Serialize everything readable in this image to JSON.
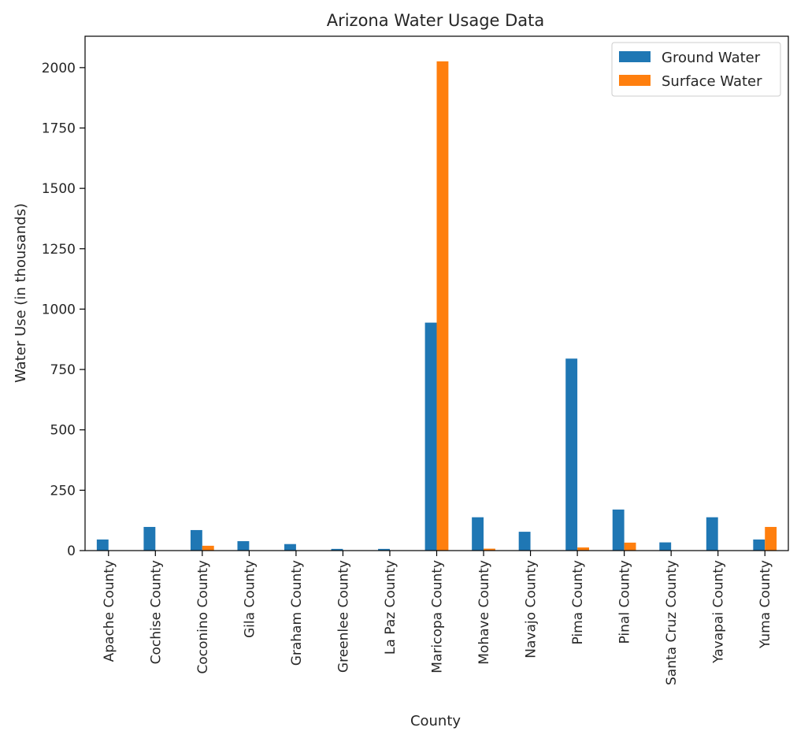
{
  "chart_data": {
    "type": "bar",
    "title": "Arizona Water Usage Data",
    "xlabel": "County",
    "ylabel": "Water Use (in thousands)",
    "ylim": [
      0,
      2130
    ],
    "yticks": [
      0,
      250,
      500,
      750,
      1000,
      1250,
      1500,
      1750,
      2000
    ],
    "grid": false,
    "legend_position": "top-right",
    "categories": [
      "Apache County",
      "Cochise County",
      "Coconino County",
      "Gila County",
      "Graham County",
      "Greenlee County",
      "La Paz County",
      "Maricopa County",
      "Mohave County",
      "Navajo County",
      "Pima County",
      "Pinal County",
      "Santa Cruz County",
      "Yavapai County",
      "Yuma County"
    ],
    "series": [
      {
        "name": "Ground Water",
        "color": "#1f77b4",
        "values": [
          46,
          98,
          85,
          39,
          27,
          7,
          7,
          944,
          138,
          78,
          795,
          170,
          34,
          138,
          46
        ]
      },
      {
        "name": "Surface Water",
        "color": "#ff7f0e",
        "values": [
          1,
          1,
          20,
          1,
          1,
          1,
          1,
          2026,
          8,
          1,
          13,
          33,
          1,
          1,
          98
        ]
      }
    ]
  }
}
